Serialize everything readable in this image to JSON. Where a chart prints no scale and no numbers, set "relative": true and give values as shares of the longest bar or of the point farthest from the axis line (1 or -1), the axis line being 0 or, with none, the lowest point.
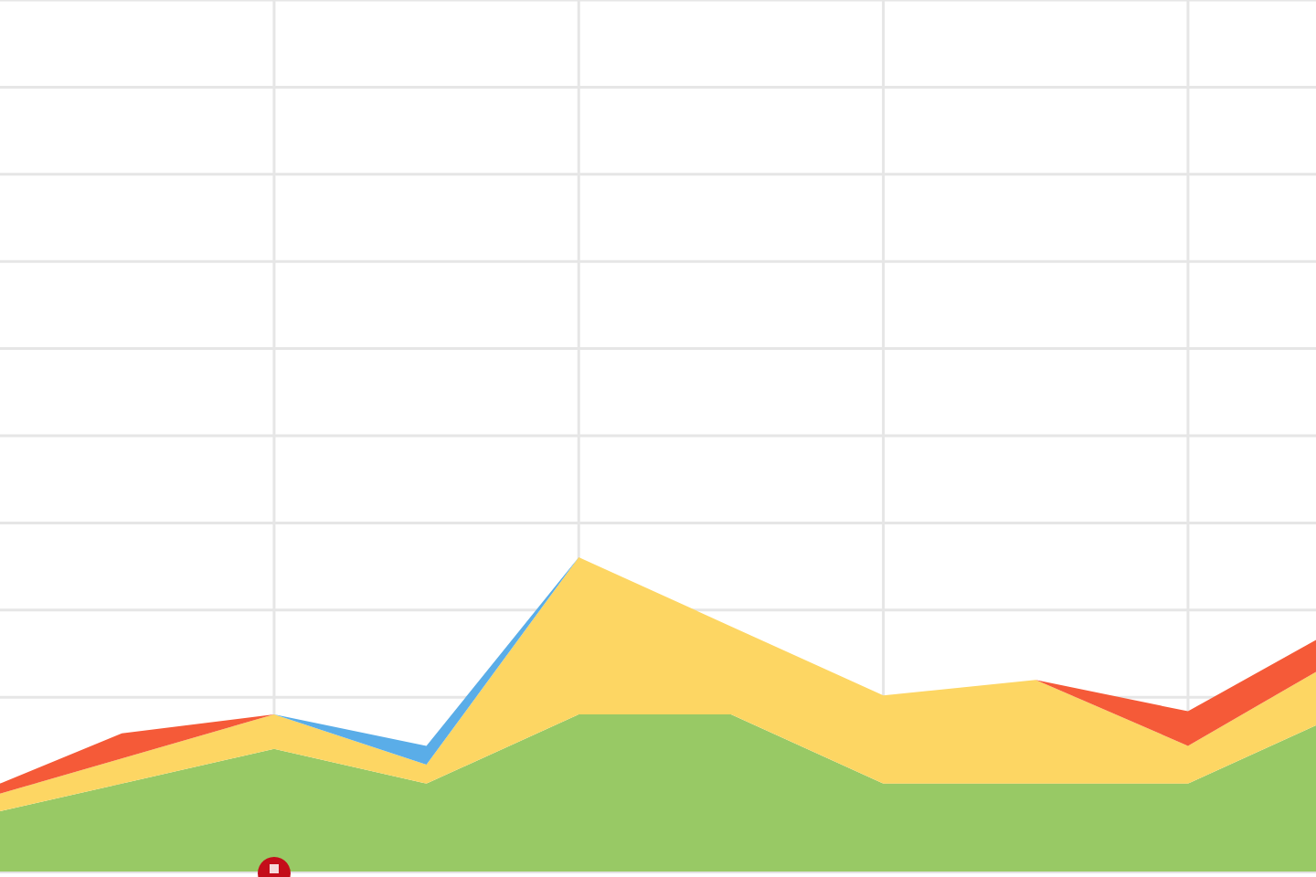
{
  "chart_data": {
    "type": "area",
    "stacked": true,
    "relative": true,
    "grid": true,
    "categories": [
      null,
      null,
      null,
      null,
      null,
      null,
      null,
      null,
      null,
      null
    ],
    "series": [
      {
        "color": "#98c965",
        "values": [
          0.17,
          0.28,
          0.39,
          0.28,
          0.5,
          0.5,
          0.28,
          0.28,
          0.28,
          0.5
        ]
      },
      {
        "color": "#fdd663",
        "values": [
          0.05,
          0.08,
          0.11,
          0.06,
          0.5,
          0.28,
          0.28,
          0.33,
          0.12,
          0.18
        ]
      },
      {
        "color": "#5aade8",
        "values": [
          null,
          null,
          0,
          0.06,
          0,
          null,
          null,
          null,
          null,
          null
        ]
      },
      {
        "color": "#f55a38",
        "values": [
          0.02,
          0.08,
          0,
          null,
          null,
          null,
          null,
          0,
          0.11,
          0.1
        ]
      }
    ]
  }
}
